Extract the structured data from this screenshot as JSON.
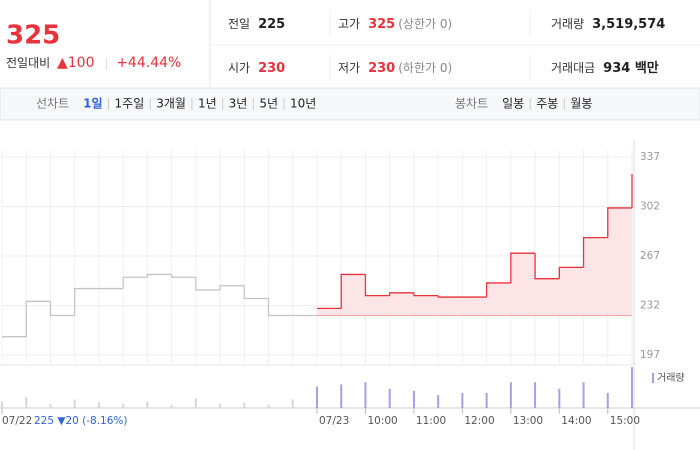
{
  "header": {
    "price": "325",
    "change_label": "전일대비",
    "change": "▲100",
    "change_rate": "+44.44%"
  },
  "info": [
    [
      {
        "label": "전일",
        "value": "225",
        "color": "#222"
      },
      {
        "label": "고가",
        "value": "325",
        "note": "(상한가 0)",
        "color": "#e8323c"
      },
      {
        "label": "거래량",
        "value": "3,519,574",
        "color": "#222"
      }
    ],
    [
      {
        "label": "시가",
        "value": "230",
        "color": "#e8323c"
      },
      {
        "label": "저가",
        "value": "230",
        "note": "(하한가 0)",
        "color": "#e8323c"
      },
      {
        "label": "거래대금",
        "value": "934 백만",
        "color": "#222"
      }
    ]
  ],
  "toolbar": {
    "line_label": "선차트",
    "line_periods": [
      "1일",
      "1주일",
      "3개월",
      "1년",
      "3년",
      "5년",
      "10년"
    ],
    "selected_index": 0,
    "candle_label": "봉차트",
    "candle_periods": [
      "일봉",
      "주봉",
      "월봉"
    ]
  },
  "chart_data": {
    "type": "line",
    "categories": [
      "07/22",
      null,
      null,
      null,
      null,
      null,
      null,
      null,
      null,
      null,
      null,
      null,
      null,
      "07/23",
      null,
      "10:00",
      null,
      "11:00",
      null,
      "12:00",
      null,
      "13:00",
      null,
      "14:00",
      null,
      "15:00",
      null
    ],
    "series": [
      {
        "color": "#c4c4c4",
        "values": [
          210,
          235,
          225,
          244,
          244,
          252,
          254,
          252,
          243,
          246,
          237,
          225,
          225,
          null,
          null,
          null,
          null,
          null,
          null,
          null,
          null,
          null,
          null,
          null,
          null,
          null,
          null
        ]
      },
      {
        "color": "#e8323c",
        "fill": "#fde4e6",
        "values": [
          null,
          null,
          null,
          null,
          null,
          null,
          null,
          null,
          null,
          null,
          null,
          null,
          null,
          230,
          254,
          239,
          241,
          239,
          238,
          238,
          248,
          269,
          251,
          259,
          280,
          301,
          325
        ]
      }
    ],
    "reference": 225,
    "ylim": [
      190,
      349
    ],
    "yticks": [
      197,
      232,
      267,
      302,
      337
    ],
    "grid": true,
    "volume_ylim": [
      0,
      40
    ],
    "volume_series": [
      {
        "color": "#d6d6d6",
        "values": [
          6,
          10,
          4,
          8,
          5,
          4,
          6,
          3,
          9,
          4,
          5,
          3,
          8,
          null,
          null,
          null,
          null,
          null,
          null,
          null,
          null,
          null,
          null,
          null,
          null,
          null,
          null
        ]
      },
      {
        "name": "거래량",
        "color": "#a99ee2",
        "values": [
          null,
          null,
          null,
          null,
          null,
          null,
          null,
          null,
          null,
          null,
          null,
          null,
          null,
          20,
          22,
          24,
          18,
          16,
          12,
          14,
          14,
          24,
          24,
          18,
          24,
          14,
          38
        ]
      }
    ],
    "prev_summary": "225 ▼20 (-8.16%)"
  }
}
